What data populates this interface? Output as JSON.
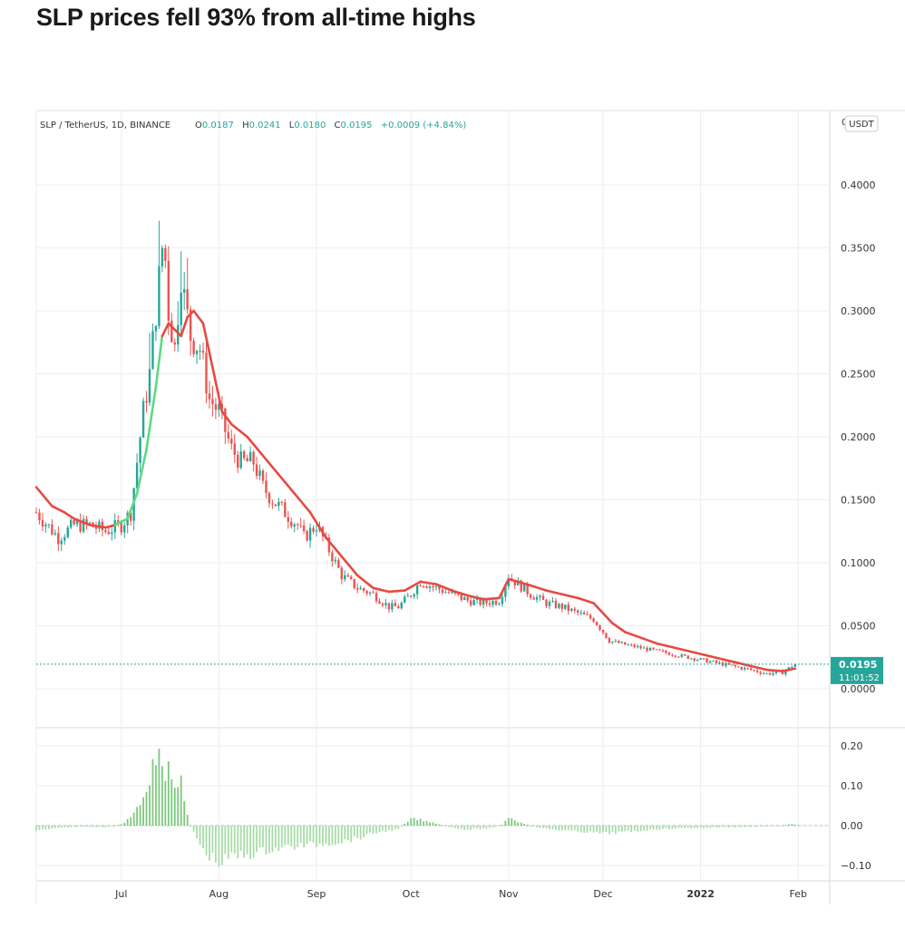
{
  "headline": "SLP prices fell 93% from all-time highs",
  "colors": {
    "up": "#26a69a",
    "down": "#ef5350",
    "ma_up": "#5fd882",
    "ma_down": "#e64a42",
    "text": "#333333",
    "grid": "#eeeeee",
    "badge": "#26a69a"
  },
  "chart_data": [
    {
      "type": "candlestick",
      "symbol_line": "SLP / TetherUS, 1D, BINANCE",
      "ohlc": {
        "o_label": "O",
        "o": "0.0187",
        "h_label": "H",
        "h": "0.0241",
        "l_label": "L",
        "l": "0.0180",
        "c_label": "C",
        "c": "0.0195",
        "change": "+0.0009 (+4.84%)"
      },
      "currency": "USDT",
      "y_ticks": [
        "0.4000",
        "0.3500",
        "0.3000",
        "0.2500",
        "0.2000",
        "0.1500",
        "0.1000",
        "0.0500",
        "0.0000"
      ],
      "y_tick_values": [
        0.4,
        0.35,
        0.3,
        0.25,
        0.2,
        0.15,
        0.1,
        0.05,
        0.0
      ],
      "ylim": [
        0,
        0.42
      ],
      "top_tick_label": "0",
      "last_price": "0.0195",
      "last_price_value": 0.0195,
      "countdown": "11:01:52",
      "x_labels": [
        "Jul",
        "Aug",
        "Sep",
        "Oct",
        "Nov",
        "Dec",
        "2022",
        "Feb"
      ],
      "x_label_days": [
        0,
        31,
        62,
        92,
        123,
        153,
        184,
        215
      ],
      "x_range_days": [
        -27,
        225
      ],
      "close_series": [
        [
          -27,
          0.14
        ],
        [
          -20,
          0.12
        ],
        [
          -15,
          0.13
        ],
        [
          -10,
          0.13
        ],
        [
          -5,
          0.125
        ],
        [
          0,
          0.13
        ],
        [
          3,
          0.14
        ],
        [
          5,
          0.18
        ],
        [
          7,
          0.22
        ],
        [
          9,
          0.25
        ],
        [
          11,
          0.3
        ],
        [
          13,
          0.35
        ],
        [
          14,
          0.34
        ],
        [
          15,
          0.3
        ],
        [
          17,
          0.27
        ],
        [
          19,
          0.33
        ],
        [
          20,
          0.31
        ],
        [
          22,
          0.28
        ],
        [
          25,
          0.27
        ],
        [
          28,
          0.23
        ],
        [
          31,
          0.22
        ],
        [
          35,
          0.19
        ],
        [
          38,
          0.18
        ],
        [
          42,
          0.18
        ],
        [
          45,
          0.16
        ],
        [
          48,
          0.15
        ],
        [
          52,
          0.14
        ],
        [
          56,
          0.13
        ],
        [
          58,
          0.12
        ],
        [
          62,
          0.13
        ],
        [
          66,
          0.11
        ],
        [
          70,
          0.09
        ],
        [
          75,
          0.08
        ],
        [
          80,
          0.075
        ],
        [
          85,
          0.065
        ],
        [
          88,
          0.065
        ],
        [
          92,
          0.075
        ],
        [
          95,
          0.085
        ],
        [
          100,
          0.08
        ],
        [
          105,
          0.075
        ],
        [
          110,
          0.07
        ],
        [
          115,
          0.068
        ],
        [
          120,
          0.07
        ],
        [
          123,
          0.09
        ],
        [
          125,
          0.085
        ],
        [
          130,
          0.075
        ],
        [
          135,
          0.068
        ],
        [
          140,
          0.065
        ],
        [
          145,
          0.06
        ],
        [
          150,
          0.055
        ],
        [
          153,
          0.045
        ],
        [
          155,
          0.038
        ],
        [
          160,
          0.035
        ],
        [
          170,
          0.03
        ],
        [
          180,
          0.025
        ],
        [
          190,
          0.02
        ],
        [
          200,
          0.015
        ],
        [
          205,
          0.012
        ],
        [
          210,
          0.013
        ],
        [
          213,
          0.018
        ],
        [
          214,
          0.0195
        ]
      ],
      "ma_series": [
        [
          -27,
          0.16
        ],
        [
          -22,
          0.145
        ],
        [
          -18,
          0.14
        ],
        [
          -15,
          0.135
        ],
        [
          -10,
          0.13
        ],
        [
          -5,
          0.128
        ],
        [
          -2,
          0.13
        ],
        [
          2,
          0.135
        ],
        [
          5,
          0.155
        ],
        [
          8,
          0.19
        ],
        [
          11,
          0.24
        ],
        [
          13,
          0.28
        ],
        [
          15,
          0.29
        ],
        [
          17,
          0.285
        ],
        [
          19,
          0.28
        ],
        [
          21,
          0.295
        ],
        [
          23,
          0.3
        ],
        [
          26,
          0.29
        ],
        [
          29,
          0.255
        ],
        [
          32,
          0.22
        ],
        [
          35,
          0.21
        ],
        [
          40,
          0.2
        ],
        [
          45,
          0.185
        ],
        [
          50,
          0.17
        ],
        [
          55,
          0.155
        ],
        [
          60,
          0.14
        ],
        [
          65,
          0.12
        ],
        [
          70,
          0.105
        ],
        [
          75,
          0.09
        ],
        [
          80,
          0.08
        ],
        [
          85,
          0.077
        ],
        [
          90,
          0.078
        ],
        [
          95,
          0.085
        ],
        [
          100,
          0.083
        ],
        [
          105,
          0.078
        ],
        [
          110,
          0.074
        ],
        [
          115,
          0.071
        ],
        [
          120,
          0.072
        ],
        [
          123,
          0.087
        ],
        [
          126,
          0.085
        ],
        [
          130,
          0.082
        ],
        [
          135,
          0.078
        ],
        [
          140,
          0.075
        ],
        [
          145,
          0.072
        ],
        [
          150,
          0.068
        ],
        [
          153,
          0.06
        ],
        [
          156,
          0.052
        ],
        [
          160,
          0.045
        ],
        [
          170,
          0.036
        ],
        [
          175,
          0.033
        ],
        [
          185,
          0.027
        ],
        [
          195,
          0.021
        ],
        [
          205,
          0.015
        ],
        [
          210,
          0.014
        ],
        [
          214,
          0.016
        ]
      ],
      "ma_green_ranges": [
        [
          -2,
          13
        ]
      ]
    },
    {
      "type": "bar",
      "role": "oscillator",
      "y_ticks": [
        "0.20",
        "0.10",
        "0.00",
        "−0.10"
      ],
      "y_tick_values": [
        0.2,
        0.1,
        0.0,
        -0.1
      ],
      "ylim": [
        -0.11,
        0.215
      ],
      "series": [
        [
          -27,
          -0.012
        ],
        [
          -20,
          -0.006
        ],
        [
          -12,
          -0.003
        ],
        [
          -5,
          -0.004
        ],
        [
          0,
          0.003
        ],
        [
          3,
          0.02
        ],
        [
          5,
          0.04
        ],
        [
          7,
          0.07
        ],
        [
          9,
          0.12
        ],
        [
          11,
          0.17
        ],
        [
          12,
          0.205
        ],
        [
          13,
          0.17
        ],
        [
          14,
          0.12
        ],
        [
          15,
          0.16
        ],
        [
          16,
          0.1
        ],
        [
          17,
          0.08
        ],
        [
          18,
          0.12
        ],
        [
          19,
          0.13
        ],
        [
          20,
          0.06
        ],
        [
          21,
          0.03
        ],
        [
          22,
          0.0
        ],
        [
          24,
          -0.03
        ],
        [
          26,
          -0.065
        ],
        [
          28,
          -0.075
        ],
        [
          30,
          -0.088
        ],
        [
          32,
          -0.095
        ],
        [
          34,
          -0.08
        ],
        [
          38,
          -0.075
        ],
        [
          42,
          -0.07
        ],
        [
          47,
          -0.06
        ],
        [
          52,
          -0.055
        ],
        [
          58,
          -0.05
        ],
        [
          64,
          -0.045
        ],
        [
          70,
          -0.04
        ],
        [
          76,
          -0.03
        ],
        [
          82,
          -0.015
        ],
        [
          88,
          -0.01
        ],
        [
          90,
          0.005
        ],
        [
          92,
          0.02
        ],
        [
          95,
          0.015
        ],
        [
          100,
          0.005
        ],
        [
          105,
          -0.005
        ],
        [
          110,
          -0.01
        ],
        [
          118,
          -0.006
        ],
        [
          121,
          0.002
        ],
        [
          123,
          0.02
        ],
        [
          125,
          0.012
        ],
        [
          128,
          0.004
        ],
        [
          133,
          -0.006
        ],
        [
          140,
          -0.012
        ],
        [
          148,
          -0.016
        ],
        [
          153,
          -0.02
        ],
        [
          157,
          -0.018
        ],
        [
          163,
          -0.014
        ],
        [
          172,
          -0.008
        ],
        [
          182,
          -0.006
        ],
        [
          192,
          -0.004
        ],
        [
          202,
          -0.003
        ],
        [
          209,
          -0.001
        ],
        [
          213,
          0.004
        ],
        [
          215,
          0.002
        ]
      ]
    }
  ]
}
